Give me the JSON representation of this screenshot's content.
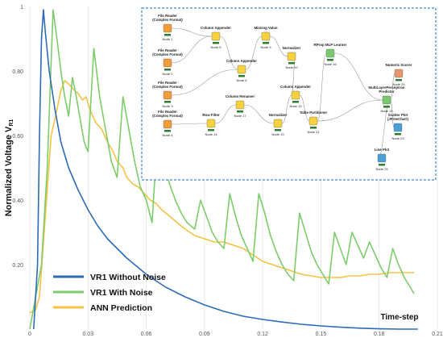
{
  "chart_data": {
    "type": "line",
    "ylabel": "Normalized Voltage V",
    "ylabel_sub": "R1",
    "xlabel": "Time-step",
    "xlim": [
      0,
      0.21
    ],
    "ylim": [
      0,
      1.0
    ],
    "x_ticks": [
      0,
      0.03,
      0.06,
      0.09,
      0.12,
      0.15,
      0.18,
      0.21
    ],
    "x_tick_labels": [
      "0",
      "0.03",
      "0.06",
      "0.09",
      "0.12",
      "0.15",
      "0.18",
      "0.21"
    ],
    "y_ticks": [
      0.2,
      0.4,
      0.6,
      0.8,
      1.0
    ],
    "y_tick_labels": [
      "0.20",
      "0.40",
      "0.60",
      "0.80",
      "1"
    ],
    "grid": "vertical",
    "legend_position": "bottom-left",
    "series": [
      {
        "name": "VR1 Without Noise",
        "color": "#2e6bb5",
        "points": [
          [
            0.002,
            0.0
          ],
          [
            0.004,
            0.2
          ],
          [
            0.005,
            0.6
          ],
          [
            0.006,
            0.9
          ],
          [
            0.007,
            0.99
          ],
          [
            0.008,
            0.92
          ],
          [
            0.01,
            0.8
          ],
          [
            0.013,
            0.68
          ],
          [
            0.016,
            0.58
          ],
          [
            0.02,
            0.5
          ],
          [
            0.025,
            0.43
          ],
          [
            0.03,
            0.37
          ],
          [
            0.035,
            0.32
          ],
          [
            0.04,
            0.28
          ],
          [
            0.05,
            0.22
          ],
          [
            0.06,
            0.17
          ],
          [
            0.07,
            0.13
          ],
          [
            0.08,
            0.1
          ],
          [
            0.09,
            0.075
          ],
          [
            0.1,
            0.055
          ],
          [
            0.11,
            0.04
          ],
          [
            0.12,
            0.03
          ],
          [
            0.13,
            0.022
          ],
          [
            0.14,
            0.015
          ],
          [
            0.15,
            0.01
          ],
          [
            0.16,
            0.006
          ],
          [
            0.17,
            0.003
          ],
          [
            0.18,
            0.001
          ],
          [
            0.19,
            0.0
          ],
          [
            0.2,
            0.0
          ]
        ]
      },
      {
        "name": "VR1 With Noise",
        "color": "#7ccd6a",
        "points": [
          [
            0.0,
            0.0
          ],
          [
            0.006,
            0.2
          ],
          [
            0.009,
            0.5
          ],
          [
            0.012,
            0.99
          ],
          [
            0.014,
            0.9
          ],
          [
            0.016,
            0.8
          ],
          [
            0.018,
            0.72
          ],
          [
            0.02,
            0.66
          ],
          [
            0.022,
            0.78
          ],
          [
            0.024,
            0.72
          ],
          [
            0.026,
            0.65
          ],
          [
            0.028,
            0.58
          ],
          [
            0.03,
            0.55
          ],
          [
            0.033,
            0.87
          ],
          [
            0.036,
            0.72
          ],
          [
            0.039,
            0.62
          ],
          [
            0.042,
            0.52
          ],
          [
            0.045,
            0.47
          ],
          [
            0.048,
            0.72
          ],
          [
            0.051,
            0.62
          ],
          [
            0.054,
            0.52
          ],
          [
            0.057,
            0.44
          ],
          [
            0.06,
            0.4
          ],
          [
            0.063,
            0.33
          ],
          [
            0.066,
            0.62
          ],
          [
            0.069,
            0.52
          ],
          [
            0.072,
            0.45
          ],
          [
            0.075,
            0.4
          ],
          [
            0.078,
            0.36
          ],
          [
            0.081,
            0.33
          ],
          [
            0.085,
            0.31
          ],
          [
            0.088,
            0.4
          ],
          [
            0.091,
            0.35
          ],
          [
            0.094,
            0.3
          ],
          [
            0.097,
            0.27
          ],
          [
            0.1,
            0.25
          ],
          [
            0.103,
            0.42
          ],
          [
            0.106,
            0.35
          ],
          [
            0.109,
            0.29
          ],
          [
            0.112,
            0.25
          ],
          [
            0.115,
            0.21
          ],
          [
            0.118,
            0.42
          ],
          [
            0.121,
            0.36
          ],
          [
            0.124,
            0.29
          ],
          [
            0.127,
            0.24
          ],
          [
            0.13,
            0.2
          ],
          [
            0.133,
            0.17
          ],
          [
            0.136,
            0.15
          ],
          [
            0.139,
            0.36
          ],
          [
            0.142,
            0.3
          ],
          [
            0.145,
            0.24
          ],
          [
            0.148,
            0.2
          ],
          [
            0.151,
            0.17
          ],
          [
            0.154,
            0.14
          ],
          [
            0.157,
            0.3
          ],
          [
            0.16,
            0.25
          ],
          [
            0.163,
            0.2
          ],
          [
            0.166,
            0.3
          ],
          [
            0.169,
            0.26
          ],
          [
            0.172,
            0.22
          ],
          [
            0.175,
            0.27
          ],
          [
            0.178,
            0.23
          ],
          [
            0.181,
            0.19
          ],
          [
            0.184,
            0.16
          ],
          [
            0.187,
            0.25
          ],
          [
            0.19,
            0.2
          ],
          [
            0.193,
            0.16
          ],
          [
            0.196,
            0.13
          ],
          [
            0.198,
            0.11
          ]
        ]
      },
      {
        "name": "ANN Prediction",
        "color": "#f5c242",
        "points": [
          [
            0.0,
            0.05
          ],
          [
            0.003,
            0.06
          ],
          [
            0.005,
            0.1
          ],
          [
            0.008,
            0.35
          ],
          [
            0.011,
            0.6
          ],
          [
            0.014,
            0.68
          ],
          [
            0.016,
            0.74
          ],
          [
            0.018,
            0.77
          ],
          [
            0.02,
            0.76
          ],
          [
            0.023,
            0.74
          ],
          [
            0.025,
            0.73
          ],
          [
            0.027,
            0.71
          ],
          [
            0.029,
            0.72
          ],
          [
            0.031,
            0.68
          ],
          [
            0.034,
            0.64
          ],
          [
            0.037,
            0.62
          ],
          [
            0.04,
            0.58
          ],
          [
            0.043,
            0.55
          ],
          [
            0.045,
            0.52
          ],
          [
            0.048,
            0.5
          ],
          [
            0.05,
            0.47
          ],
          [
            0.053,
            0.45
          ],
          [
            0.056,
            0.44
          ],
          [
            0.059,
            0.42
          ],
          [
            0.062,
            0.4
          ],
          [
            0.065,
            0.39
          ],
          [
            0.068,
            0.37
          ],
          [
            0.072,
            0.35
          ],
          [
            0.076,
            0.33
          ],
          [
            0.08,
            0.31
          ],
          [
            0.085,
            0.29
          ],
          [
            0.09,
            0.28
          ],
          [
            0.095,
            0.27
          ],
          [
            0.1,
            0.27
          ],
          [
            0.105,
            0.26
          ],
          [
            0.11,
            0.25
          ],
          [
            0.115,
            0.23
          ],
          [
            0.12,
            0.21
          ],
          [
            0.125,
            0.2
          ],
          [
            0.13,
            0.19
          ],
          [
            0.135,
            0.18
          ],
          [
            0.14,
            0.17
          ],
          [
            0.145,
            0.165
          ],
          [
            0.15,
            0.16
          ],
          [
            0.155,
            0.16
          ],
          [
            0.16,
            0.16
          ],
          [
            0.165,
            0.165
          ],
          [
            0.17,
            0.165
          ],
          [
            0.175,
            0.17
          ],
          [
            0.18,
            0.17
          ],
          [
            0.185,
            0.175
          ],
          [
            0.19,
            0.175
          ],
          [
            0.195,
            0.175
          ],
          [
            0.198,
            0.175
          ]
        ]
      }
    ]
  },
  "inset": {
    "nodes": [
      {
        "title": [
          "File Reader",
          "(Complex Format)"
        ],
        "id": "Node 1",
        "icon": "file-reader-icon",
        "color": "#f29d38"
      },
      {
        "title": [
          "File Reader",
          "(Complex Format)"
        ],
        "id": "Node 2",
        "icon": "file-reader-icon",
        "color": "#f29d38"
      },
      {
        "title": [
          "File Reader",
          "(Complex Format)"
        ],
        "id": "Node 3",
        "icon": "file-reader-icon",
        "color": "#f29d38"
      },
      {
        "title": [
          "File Reader",
          "(Complex Format)"
        ],
        "id": "Node 4",
        "icon": "file-reader-icon",
        "color": "#f29d38"
      },
      {
        "title": [
          "Column Appender"
        ],
        "id": "Node 5",
        "icon": "column-appender-icon",
        "color": "#f7d23c"
      },
      {
        "title": [
          "Column Appender"
        ],
        "id": "Node 6",
        "icon": "column-appender-icon",
        "color": "#f7d23c"
      },
      {
        "title": [
          "Missing Value"
        ],
        "id": "Node 9",
        "icon": "missing-value-icon",
        "color": "#f7d23c"
      },
      {
        "title": [
          "Normalizer"
        ],
        "id": "Node 20",
        "icon": "normalizer-icon",
        "color": "#f7d23c"
      },
      {
        "title": [
          "Row Filter"
        ],
        "id": "Node 14",
        "icon": "row-filter-icon",
        "color": "#f7d23c"
      },
      {
        "title": [
          "Column Renamer"
        ],
        "id": "Node 17",
        "icon": "column-renamer-icon",
        "color": "#f7d23c"
      },
      {
        "title": [
          "Normalizer"
        ],
        "id": "Node 19",
        "icon": "normalizer-icon",
        "color": "#f7d23c"
      },
      {
        "title": [
          "Column Appender"
        ],
        "id": "Node 13",
        "icon": "column-appender-icon",
        "color": "#f7d23c"
      },
      {
        "title": [
          "Table Partitioner"
        ],
        "id": "Node 21",
        "icon": "table-partitioner-icon",
        "color": "#f7d23c"
      },
      {
        "title": [
          "RProp MLP Learner"
        ],
        "id": "Node 16",
        "icon": "mlp-learner-icon",
        "color": "#7bc96f"
      },
      {
        "title": [
          "MultiLayerPerceptron",
          "Predictor"
        ],
        "id": "Node 15",
        "icon": "mlp-predictor-icon",
        "color": "#7bc96f"
      },
      {
        "title": [
          "Numeric Scorer"
        ],
        "id": "Node 24",
        "icon": "numeric-scorer-icon",
        "color": "#e8956d"
      },
      {
        "title": [
          "Scatter Plot",
          "(JFreeChart)"
        ],
        "id": "Node 23",
        "icon": "scatter-plot-icon",
        "color": "#4a9fd4"
      },
      {
        "title": [
          "Line Plot"
        ],
        "id": "Node 25",
        "icon": "line-plot-icon",
        "color": "#4a9fd4"
      }
    ]
  }
}
